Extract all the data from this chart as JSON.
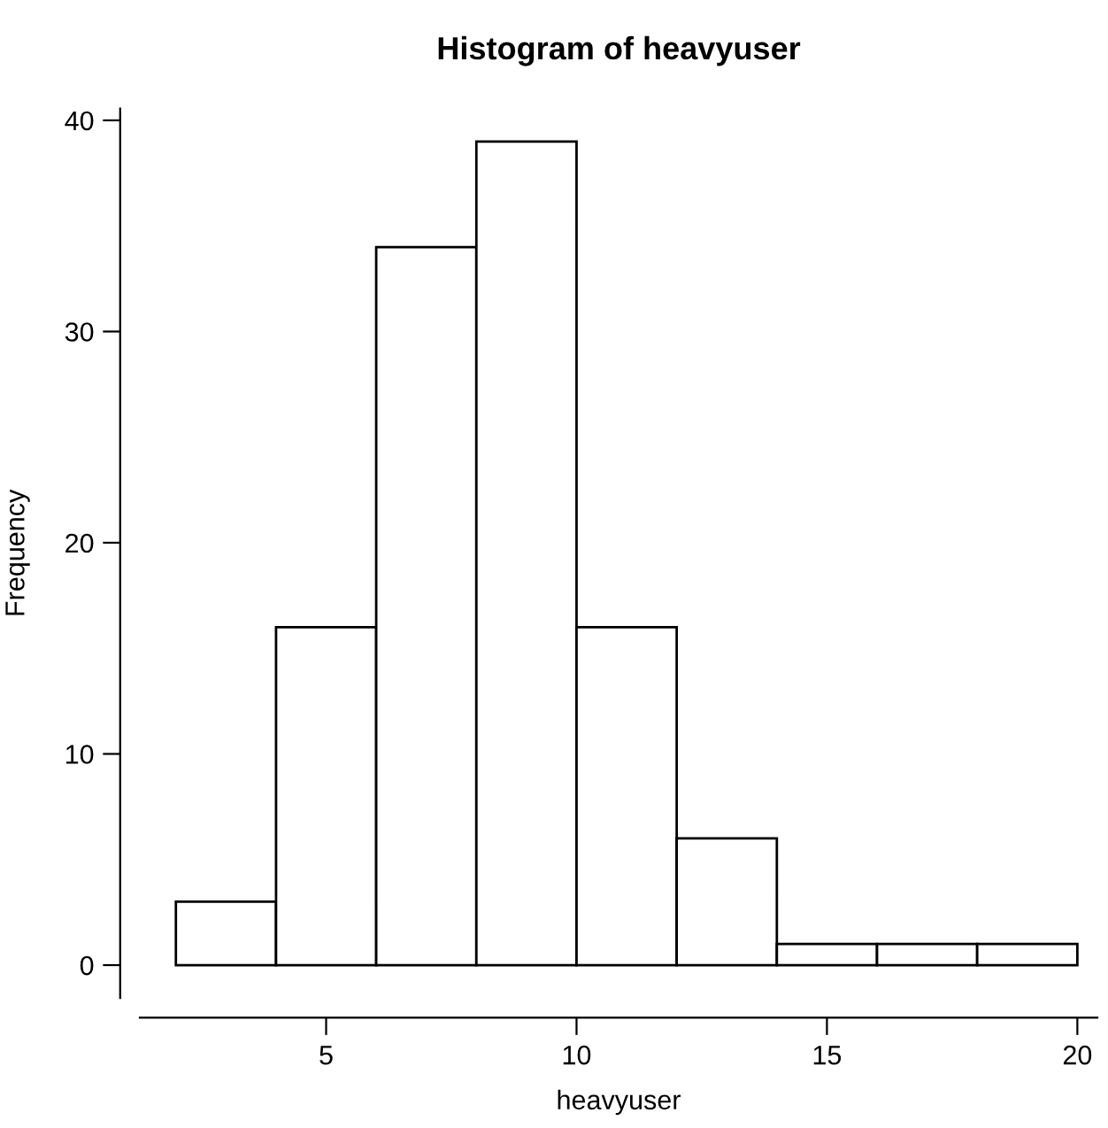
{
  "chart_data": {
    "type": "histogram",
    "title": "Histogram of heavyuser",
    "xlabel": "heavyuser",
    "ylabel": "Frequency",
    "bins": [
      2,
      4,
      6,
      8,
      10,
      12,
      14,
      16,
      18,
      20
    ],
    "values": [
      3,
      16,
      34,
      39,
      16,
      6,
      1,
      1,
      1
    ],
    "color": "#ffffff",
    "grid": false,
    "xlim": [
      1.28,
      20.4
    ],
    "ylim": [
      -1.56,
      40.56
    ],
    "xticks": [
      5,
      10,
      15,
      20
    ],
    "yticks": [
      0,
      10,
      20,
      30,
      40
    ]
  }
}
